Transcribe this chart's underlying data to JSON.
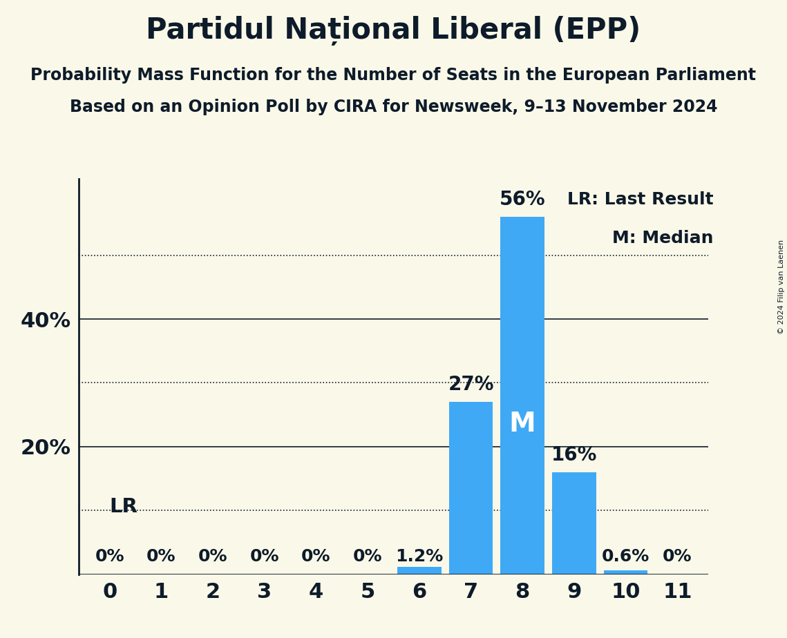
{
  "title": "Partidul Național Liberal (EPP)",
  "subtitle1": "Probability Mass Function for the Number of Seats in the European Parliament",
  "subtitle2": "Based on an Opinion Poll by CIRA for Newsweek, 9–13 November 2024",
  "copyright": "© 2024 Filip van Laenen",
  "categories": [
    0,
    1,
    2,
    3,
    4,
    5,
    6,
    7,
    8,
    9,
    10,
    11
  ],
  "values": [
    0.0,
    0.0,
    0.0,
    0.0,
    0.0,
    0.0,
    1.2,
    27.0,
    56.0,
    16.0,
    0.6,
    0.0
  ],
  "bar_color": "#3fa9f5",
  "background_color": "#faf8e8",
  "text_color": "#0d1b2a",
  "median_seat": 8,
  "lr_seat": 0,
  "ylim": [
    0,
    62
  ],
  "dotted_gridlines": [
    10,
    30,
    50
  ],
  "solid_gridlines": [
    20,
    40
  ],
  "legend_lr": "LR: Last Result",
  "legend_m": "M: Median",
  "lr_label": "LR",
  "m_label": "M",
  "title_fontsize": 30,
  "subtitle_fontsize": 17,
  "axis_tick_fontsize": 22,
  "bar_label_fontsize": 18,
  "legend_fontsize": 18,
  "ytick_labels": [
    "20%",
    "40%"
  ],
  "ytick_values": [
    20,
    40
  ]
}
